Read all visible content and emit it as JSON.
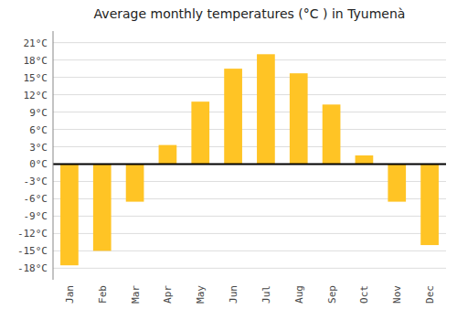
{
  "chart_data": {
    "type": "bar",
    "title": "Average monthly temperatures (°C ) in Tyumenà",
    "categories": [
      "Jan",
      "Feb",
      "Mar",
      "Apr",
      "May",
      "Jun",
      "Jul",
      "Aug",
      "Sep",
      "Oct",
      "Nov",
      "Dec"
    ],
    "values": [
      -17.5,
      -15.0,
      -6.5,
      3.3,
      10.8,
      16.5,
      19.0,
      15.7,
      10.3,
      1.5,
      -6.5,
      -14.0
    ],
    "color": "#FFC425",
    "ylim": [
      -20,
      23
    ],
    "yticks": [
      {
        "value": -18,
        "label": "-18°C"
      },
      {
        "value": -15,
        "label": "-15°C"
      },
      {
        "value": -12,
        "label": "-12°C"
      },
      {
        "value": -9,
        "label": "-9°C"
      },
      {
        "value": -6,
        "label": "-6°C"
      },
      {
        "value": -3,
        "label": "-3°C"
      },
      {
        "value": 0,
        "label": "0°C"
      },
      {
        "value": 3,
        "label": "3°C"
      },
      {
        "value": 6,
        "label": "6°C"
      },
      {
        "value": 9,
        "label": "9°C"
      },
      {
        "value": 12,
        "label": "12°C"
      },
      {
        "value": 15,
        "label": "15°C"
      },
      {
        "value": 18,
        "label": "18°C"
      },
      {
        "value": 21,
        "label": "21°C"
      }
    ],
    "grid": true
  }
}
